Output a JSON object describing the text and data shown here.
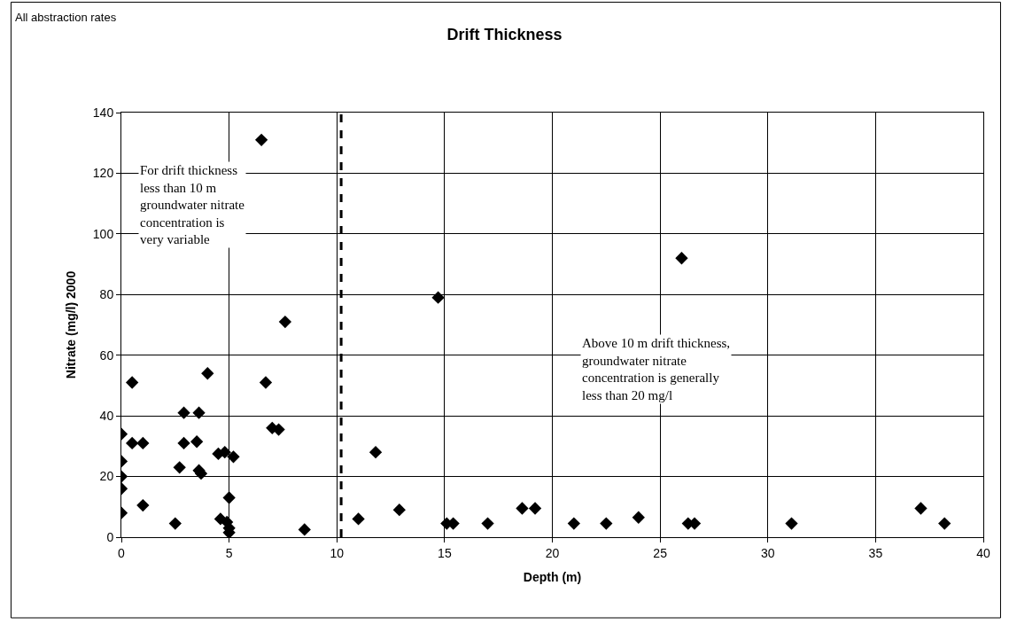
{
  "chart_data": {
    "type": "scatter",
    "title": "Drift Thickness",
    "xlabel": "Depth (m)",
    "ylabel": "Nitrate (mg/l) 2000",
    "annotations": [
      "All abstraction rates",
      "For drift thickness\nless than 10 m\ngroundwater nitrate\nconcentration is\nvery variable",
      "Above 10 m drift thickness,\ngroundwater nitrate\nconcentration is generally\nless than 20 mg/l"
    ],
    "x": [
      0,
      0,
      0,
      0,
      0,
      0.5,
      0.5,
      1,
      1,
      2.5,
      2.7,
      2.9,
      2.9,
      3.5,
      3.6,
      3.6,
      3.7,
      4,
      4.5,
      4.6,
      4.8,
      4.9,
      5,
      5,
      5,
      5.2,
      6.5,
      6.7,
      7,
      7.3,
      7.6,
      8.5,
      11,
      11.8,
      12.9,
      14.7,
      15.1,
      15.4,
      17,
      18.6,
      19.2,
      21,
      22.5,
      24,
      26,
      26.3,
      26.6,
      31.1,
      37.1,
      38.2
    ],
    "series": [
      {
        "color": "#000000",
        "values": [
          34,
          25,
          20,
          16,
          8,
          51,
          31,
          31,
          10.5,
          4.5,
          23,
          31,
          41,
          31.5,
          41,
          22,
          21,
          54,
          27.5,
          6,
          28,
          5,
          13,
          3,
          1.5,
          26.5,
          131,
          51,
          36,
          35.5,
          71,
          2.5,
          6,
          28,
          9,
          79,
          4.5,
          4.5,
          4.5,
          9.5,
          9.5,
          4.5,
          4.5,
          6.5,
          92,
          4.5,
          4.5,
          4.5,
          9.5,
          4.5
        ]
      }
    ],
    "xlim": [
      0,
      40
    ],
    "xticks": [
      0,
      5,
      10,
      15,
      20,
      25,
      30,
      35,
      40
    ],
    "ylim": [
      0,
      140
    ],
    "yticks": [
      0,
      20,
      40,
      60,
      80,
      100,
      120,
      140
    ],
    "ref_lines": [
      {
        "axis": "x",
        "value": 10.2,
        "color": "#000000",
        "line_style": "dashed"
      }
    ],
    "grid": true,
    "marker": "diamond"
  }
}
